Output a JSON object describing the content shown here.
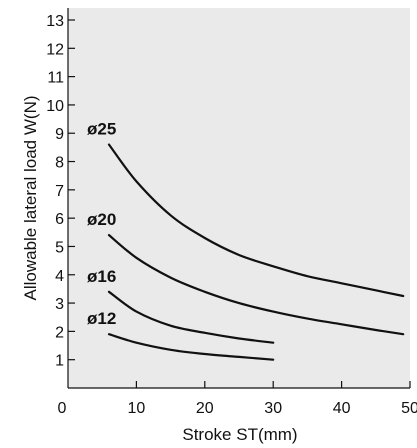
{
  "chart_data": {
    "type": "line",
    "title": "",
    "xlabel": "Stroke ST(mm)",
    "ylabel": "Allowable lateral load W(N)",
    "xlim": [
      0,
      50
    ],
    "ylim": [
      0,
      13.5
    ],
    "xticks": [
      "0",
      "10",
      "20",
      "30",
      "40",
      "50"
    ],
    "yticks": [
      "1",
      "2",
      "3",
      "4",
      "5",
      "6",
      "7",
      "8",
      "9",
      "10",
      "11",
      "12",
      "13"
    ],
    "grid": false,
    "background": "#eaeaea",
    "line_color": "#111111",
    "series": [
      {
        "name": "ø25",
        "x": [
          6,
          10,
          15,
          20,
          25,
          30,
          35,
          40,
          45,
          49
        ],
        "y": [
          8.6,
          7.3,
          6.1,
          5.3,
          4.7,
          4.3,
          3.95,
          3.7,
          3.45,
          3.25
        ]
      },
      {
        "name": "ø20",
        "x": [
          6,
          10,
          15,
          20,
          25,
          30,
          35,
          40,
          45,
          49
        ],
        "y": [
          5.4,
          4.6,
          3.9,
          3.4,
          3.0,
          2.7,
          2.45,
          2.25,
          2.05,
          1.9
        ]
      },
      {
        "name": "ø16",
        "x": [
          6,
          10,
          15,
          20,
          25,
          30
        ],
        "y": [
          3.4,
          2.7,
          2.2,
          1.95,
          1.75,
          1.6
        ]
      },
      {
        "name": "ø12",
        "x": [
          6,
          10,
          15,
          20,
          25,
          30
        ],
        "y": [
          1.9,
          1.6,
          1.35,
          1.2,
          1.1,
          1.0
        ]
      }
    ]
  }
}
